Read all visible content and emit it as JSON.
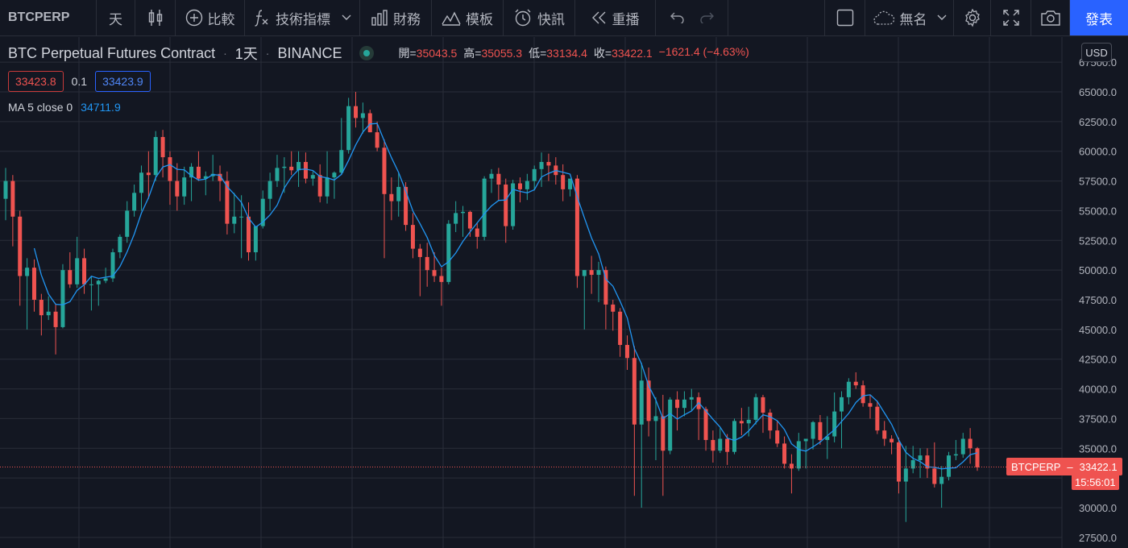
{
  "toolbar": {
    "symbol": "BTCPERP",
    "interval": "天",
    "compare_label": "比較",
    "indicators_label": "技術指標",
    "financials_label": "財務",
    "templates_label": "模板",
    "alert_label": "快訊",
    "replay_label": "重播",
    "layout_name": "無名",
    "publish_label": "發表"
  },
  "legend": {
    "title": "BTC Perpetual Futures Contract",
    "interval": "1天",
    "exchange": "BINANCE",
    "open_label": "開=",
    "open": "35043.5",
    "high_label": "高=",
    "high": "35055.3",
    "low_label": "低=",
    "low": "33134.4",
    "close_label": "收=",
    "close": "33422.1",
    "change": "−1621.4 (−4.63%)",
    "bid": "33423.8",
    "spread": "0.1",
    "ask": "33423.9",
    "ma_label": "MA 5 close 0",
    "ma_value": "34711.9"
  },
  "price_axis": {
    "currency": "USD",
    "ticks": [
      "67500.0",
      "65000.0",
      "62500.0",
      "60000.0",
      "57500.0",
      "55000.0",
      "52500.0",
      "50000.0",
      "47500.0",
      "45000.0",
      "42500.0",
      "40000.0",
      "37500.0",
      "35000.0",
      "32500.0",
      "30000.0",
      "27500.0"
    ],
    "last_label": "BTCPERP",
    "last_price": "33422.1",
    "countdown": "15:56:01"
  },
  "colors": {
    "up": "#26a69a",
    "down": "#ef5350",
    "ma": "#2196f3",
    "grid": "#2a2e39",
    "background": "#131722"
  },
  "chart_data": {
    "type": "candlestick",
    "symbol": "BTCPERP",
    "interval": "1D",
    "ylim": [
      27000,
      68500
    ],
    "ma_period": 5,
    "candles": [
      {
        "o": 56000,
        "h": 58600,
        "l": 54200,
        "c": 57500
      },
      {
        "o": 57500,
        "h": 58000,
        "l": 52000,
        "c": 54500
      },
      {
        "o": 54500,
        "h": 55000,
        "l": 47000,
        "c": 49500
      },
      {
        "o": 49500,
        "h": 51000,
        "l": 45000,
        "c": 50200
      },
      {
        "o": 50200,
        "h": 50900,
        "l": 46500,
        "c": 47500
      },
      {
        "o": 47500,
        "h": 48000,
        "l": 44500,
        "c": 46200
      },
      {
        "o": 46200,
        "h": 47800,
        "l": 45800,
        "c": 46500
      },
      {
        "o": 46500,
        "h": 47200,
        "l": 42900,
        "c": 45200
      },
      {
        "o": 45200,
        "h": 50500,
        "l": 45100,
        "c": 50000
      },
      {
        "o": 50000,
        "h": 51500,
        "l": 48500,
        "c": 48800
      },
      {
        "o": 48800,
        "h": 52800,
        "l": 48500,
        "c": 51000
      },
      {
        "o": 51000,
        "h": 51800,
        "l": 48000,
        "c": 48800
      },
      {
        "o": 48800,
        "h": 49500,
        "l": 46600,
        "c": 48800
      },
      {
        "o": 48800,
        "h": 49200,
        "l": 47000,
        "c": 49100
      },
      {
        "o": 49100,
        "h": 50200,
        "l": 48900,
        "c": 49300
      },
      {
        "o": 49300,
        "h": 51800,
        "l": 49000,
        "c": 51500
      },
      {
        "o": 51500,
        "h": 53000,
        "l": 51000,
        "c": 52800
      },
      {
        "o": 52800,
        "h": 55800,
        "l": 52300,
        "c": 55000
      },
      {
        "o": 55000,
        "h": 57200,
        "l": 54500,
        "c": 56500
      },
      {
        "o": 56500,
        "h": 58800,
        "l": 55000,
        "c": 58200
      },
      {
        "o": 58200,
        "h": 60000,
        "l": 56000,
        "c": 58000
      },
      {
        "o": 58000,
        "h": 61700,
        "l": 57500,
        "c": 61200
      },
      {
        "o": 61200,
        "h": 61800,
        "l": 57800,
        "c": 59500
      },
      {
        "o": 59500,
        "h": 60000,
        "l": 55500,
        "c": 57500
      },
      {
        "o": 57500,
        "h": 59000,
        "l": 55000,
        "c": 56200
      },
      {
        "o": 56200,
        "h": 58700,
        "l": 55500,
        "c": 57800
      },
      {
        "o": 57800,
        "h": 59000,
        "l": 55800,
        "c": 58700
      },
      {
        "o": 58700,
        "h": 60000,
        "l": 57500,
        "c": 57700
      },
      {
        "o": 57700,
        "h": 58300,
        "l": 56300,
        "c": 57900
      },
      {
        "o": 57900,
        "h": 59700,
        "l": 57500,
        "c": 58100
      },
      {
        "o": 58100,
        "h": 58800,
        "l": 55800,
        "c": 57500
      },
      {
        "o": 57500,
        "h": 58300,
        "l": 53000,
        "c": 53900
      },
      {
        "o": 53900,
        "h": 56500,
        "l": 53100,
        "c": 54500
      },
      {
        "o": 54500,
        "h": 56300,
        "l": 51000,
        "c": 54500
      },
      {
        "o": 54500,
        "h": 55700,
        "l": 50800,
        "c": 51500
      },
      {
        "o": 51500,
        "h": 53500,
        "l": 50800,
        "c": 53700
      },
      {
        "o": 53700,
        "h": 56700,
        "l": 53500,
        "c": 56000
      },
      {
        "o": 56000,
        "h": 58200,
        "l": 55000,
        "c": 57500
      },
      {
        "o": 57500,
        "h": 59700,
        "l": 57000,
        "c": 58600
      },
      {
        "o": 58600,
        "h": 59500,
        "l": 56500,
        "c": 58700
      },
      {
        "o": 58700,
        "h": 60000,
        "l": 58000,
        "c": 58400
      },
      {
        "o": 58400,
        "h": 60000,
        "l": 57000,
        "c": 59100
      },
      {
        "o": 59100,
        "h": 59900,
        "l": 57300,
        "c": 57700
      },
      {
        "o": 57700,
        "h": 58300,
        "l": 57100,
        "c": 58000
      },
      {
        "o": 58000,
        "h": 58900,
        "l": 55700,
        "c": 56200
      },
      {
        "o": 56200,
        "h": 60000,
        "l": 55600,
        "c": 57800
      },
      {
        "o": 57800,
        "h": 58300,
        "l": 56000,
        "c": 58200
      },
      {
        "o": 58200,
        "h": 62800,
        "l": 58000,
        "c": 60100
      },
      {
        "o": 60100,
        "h": 64500,
        "l": 59800,
        "c": 63800
      },
      {
        "o": 63800,
        "h": 65000,
        "l": 62000,
        "c": 62800
      },
      {
        "o": 62800,
        "h": 64100,
        "l": 61500,
        "c": 63200
      },
      {
        "o": 63200,
        "h": 63500,
        "l": 61600,
        "c": 61600
      },
      {
        "o": 61600,
        "h": 62500,
        "l": 60000,
        "c": 60300
      },
      {
        "o": 60300,
        "h": 61000,
        "l": 51000,
        "c": 56400
      },
      {
        "o": 56400,
        "h": 57800,
        "l": 54200,
        "c": 55800
      },
      {
        "o": 55800,
        "h": 58200,
        "l": 54500,
        "c": 57000
      },
      {
        "o": 57000,
        "h": 57400,
        "l": 53300,
        "c": 53800
      },
      {
        "o": 53800,
        "h": 54800,
        "l": 51000,
        "c": 51800
      },
      {
        "o": 51800,
        "h": 52200,
        "l": 47800,
        "c": 51100
      },
      {
        "o": 51100,
        "h": 52300,
        "l": 48600,
        "c": 50000
      },
      {
        "o": 50000,
        "h": 51500,
        "l": 49000,
        "c": 49500
      },
      {
        "o": 49500,
        "h": 50200,
        "l": 47000,
        "c": 49000
      },
      {
        "o": 49000,
        "h": 54200,
        "l": 48800,
        "c": 53900
      },
      {
        "o": 53900,
        "h": 55800,
        "l": 53200,
        "c": 54800
      },
      {
        "o": 54800,
        "h": 55400,
        "l": 52800,
        "c": 54900
      },
      {
        "o": 54900,
        "h": 55000,
        "l": 52800,
        "c": 53500
      },
      {
        "o": 53500,
        "h": 54000,
        "l": 51800,
        "c": 52800
      },
      {
        "o": 52800,
        "h": 57900,
        "l": 52500,
        "c": 57700
      },
      {
        "o": 57700,
        "h": 58500,
        "l": 56500,
        "c": 58100
      },
      {
        "o": 58100,
        "h": 58600,
        "l": 55800,
        "c": 57200
      },
      {
        "o": 57200,
        "h": 57700,
        "l": 52300,
        "c": 53700
      },
      {
        "o": 53700,
        "h": 57600,
        "l": 53400,
        "c": 57300
      },
      {
        "o": 57300,
        "h": 57800,
        "l": 55700,
        "c": 56800
      },
      {
        "o": 56800,
        "h": 58100,
        "l": 55900,
        "c": 57500
      },
      {
        "o": 57500,
        "h": 58800,
        "l": 56700,
        "c": 58500
      },
      {
        "o": 58500,
        "h": 59900,
        "l": 57000,
        "c": 59100
      },
      {
        "o": 59100,
        "h": 59800,
        "l": 57500,
        "c": 58800
      },
      {
        "o": 58800,
        "h": 59500,
        "l": 57200,
        "c": 58000
      },
      {
        "o": 58000,
        "h": 58900,
        "l": 55800,
        "c": 56800
      },
      {
        "o": 56800,
        "h": 57600,
        "l": 56200,
        "c": 57700
      },
      {
        "o": 57700,
        "h": 58000,
        "l": 48500,
        "c": 49500
      },
      {
        "o": 49500,
        "h": 50000,
        "l": 45000,
        "c": 50000
      },
      {
        "o": 50000,
        "h": 51200,
        "l": 48000,
        "c": 49600
      },
      {
        "o": 49600,
        "h": 50700,
        "l": 47300,
        "c": 50000
      },
      {
        "o": 50000,
        "h": 50300,
        "l": 45000,
        "c": 47100
      },
      {
        "o": 47100,
        "h": 47500,
        "l": 44900,
        "c": 46500
      },
      {
        "o": 46500,
        "h": 46800,
        "l": 42700,
        "c": 43700
      },
      {
        "o": 43700,
        "h": 44500,
        "l": 41600,
        "c": 42600
      },
      {
        "o": 42600,
        "h": 43600,
        "l": 31000,
        "c": 37000
      },
      {
        "o": 37000,
        "h": 42200,
        "l": 30000,
        "c": 40700
      },
      {
        "o": 40700,
        "h": 41800,
        "l": 36000,
        "c": 37300
      },
      {
        "o": 37300,
        "h": 39300,
        "l": 34000,
        "c": 37700
      },
      {
        "o": 37700,
        "h": 39500,
        "l": 31000,
        "c": 34800
      },
      {
        "o": 34800,
        "h": 39300,
        "l": 34500,
        "c": 39100
      },
      {
        "o": 39100,
        "h": 39800,
        "l": 36500,
        "c": 38400
      },
      {
        "o": 38400,
        "h": 39800,
        "l": 37700,
        "c": 39100
      },
      {
        "o": 39100,
        "h": 40000,
        "l": 38200,
        "c": 39300
      },
      {
        "o": 39300,
        "h": 39700,
        "l": 35700,
        "c": 38300
      },
      {
        "o": 38300,
        "h": 38500,
        "l": 34800,
        "c": 35700
      },
      {
        "o": 35700,
        "h": 36500,
        "l": 33800,
        "c": 34800
      },
      {
        "o": 34800,
        "h": 36700,
        "l": 34600,
        "c": 35800
      },
      {
        "o": 35800,
        "h": 36200,
        "l": 33600,
        "c": 34700
      },
      {
        "o": 34700,
        "h": 37500,
        "l": 34500,
        "c": 37300
      },
      {
        "o": 37300,
        "h": 38400,
        "l": 36100,
        "c": 37100
      },
      {
        "o": 37100,
        "h": 38500,
        "l": 36000,
        "c": 37400
      },
      {
        "o": 37400,
        "h": 39600,
        "l": 37000,
        "c": 39300
      },
      {
        "o": 39300,
        "h": 39500,
        "l": 36300,
        "c": 38000
      },
      {
        "o": 38000,
        "h": 38300,
        "l": 35800,
        "c": 36500
      },
      {
        "o": 36500,
        "h": 37300,
        "l": 35100,
        "c": 35400
      },
      {
        "o": 35400,
        "h": 36000,
        "l": 33300,
        "c": 33700
      },
      {
        "o": 33700,
        "h": 34500,
        "l": 31200,
        "c": 33300
      },
      {
        "o": 33300,
        "h": 36300,
        "l": 33100,
        "c": 35600
      },
      {
        "o": 35600,
        "h": 35800,
        "l": 33300,
        "c": 35800
      },
      {
        "o": 35800,
        "h": 37300,
        "l": 34900,
        "c": 37200
      },
      {
        "o": 37200,
        "h": 37800,
        "l": 35300,
        "c": 35700
      },
      {
        "o": 35700,
        "h": 37700,
        "l": 34100,
        "c": 36000
      },
      {
        "o": 36000,
        "h": 39700,
        "l": 35500,
        "c": 38100
      },
      {
        "o": 38100,
        "h": 39800,
        "l": 35000,
        "c": 39300
      },
      {
        "o": 39300,
        "h": 40900,
        "l": 38700,
        "c": 40600
      },
      {
        "o": 40600,
        "h": 41400,
        "l": 40000,
        "c": 40300
      },
      {
        "o": 40300,
        "h": 40700,
        "l": 38500,
        "c": 38800
      },
      {
        "o": 38800,
        "h": 39500,
        "l": 37500,
        "c": 38500
      },
      {
        "o": 38500,
        "h": 39000,
        "l": 36200,
        "c": 36500
      },
      {
        "o": 36500,
        "h": 37300,
        "l": 35200,
        "c": 35800
      },
      {
        "o": 35800,
        "h": 36100,
        "l": 34500,
        "c": 35500
      },
      {
        "o": 35500,
        "h": 35900,
        "l": 31200,
        "c": 32200
      },
      {
        "o": 32200,
        "h": 35200,
        "l": 28800,
        "c": 33300
      },
      {
        "o": 33300,
        "h": 35200,
        "l": 32900,
        "c": 34000
      },
      {
        "o": 34000,
        "h": 35000,
        "l": 32500,
        "c": 34400
      },
      {
        "o": 34400,
        "h": 35000,
        "l": 32500,
        "c": 33300
      },
      {
        "o": 33300,
        "h": 35500,
        "l": 31700,
        "c": 32000
      },
      {
        "o": 32000,
        "h": 33500,
        "l": 30000,
        "c": 32600
      },
      {
        "o": 32600,
        "h": 34700,
        "l": 32300,
        "c": 34400
      },
      {
        "o": 34400,
        "h": 35700,
        "l": 34000,
        "c": 34500
      },
      {
        "o": 34500,
        "h": 36300,
        "l": 34200,
        "c": 35800
      },
      {
        "o": 35800,
        "h": 36700,
        "l": 33700,
        "c": 35000
      },
      {
        "o": 35000,
        "h": 35100,
        "l": 33100,
        "c": 33400
      }
    ]
  }
}
